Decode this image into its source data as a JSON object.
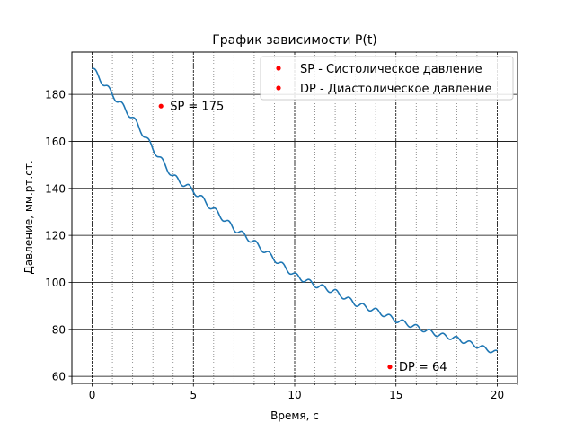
{
  "chart_data": {
    "type": "line",
    "title": "График зависимости P(t)",
    "xlabel": "Время, с",
    "ylabel": "Давление, мм.рт.ст.",
    "xlim": [
      -1,
      21
    ],
    "ylim": [
      57,
      198
    ],
    "x_ticks": [
      0,
      5,
      10,
      15,
      20
    ],
    "y_ticks": [
      60,
      80,
      100,
      120,
      140,
      160,
      180
    ],
    "x_minor_step": 1,
    "grid": {
      "major": true,
      "minor_x": true
    },
    "legend_position": "top-right",
    "series": [
      {
        "color": "#1f77b4",
        "trend": [
          [
            0,
            191
          ],
          [
            1,
            180
          ],
          [
            2,
            170
          ],
          [
            3,
            157
          ],
          [
            4,
            145
          ],
          [
            5,
            139
          ],
          [
            6,
            131
          ],
          [
            7,
            123
          ],
          [
            8,
            117
          ],
          [
            9,
            110
          ],
          [
            10,
            103
          ],
          [
            11,
            99
          ],
          [
            12,
            96
          ],
          [
            13,
            91
          ],
          [
            14,
            88
          ],
          [
            15,
            84
          ],
          [
            16,
            81
          ],
          [
            17,
            78
          ],
          [
            18,
            76
          ],
          [
            19,
            73
          ],
          [
            20,
            70
          ]
        ],
        "ripple_period": 0.66,
        "ripple_amplitude": 1.3
      }
    ],
    "points": [
      {
        "name": "SP - Систолическое давление",
        "x": 3.4,
        "y": 175,
        "label": "SP = 175",
        "color": "#ff0000"
      },
      {
        "name": "DP - Диастолическое давление",
        "x": 14.7,
        "y": 64,
        "label": "DP = 64",
        "color": "#ff0000"
      }
    ]
  }
}
